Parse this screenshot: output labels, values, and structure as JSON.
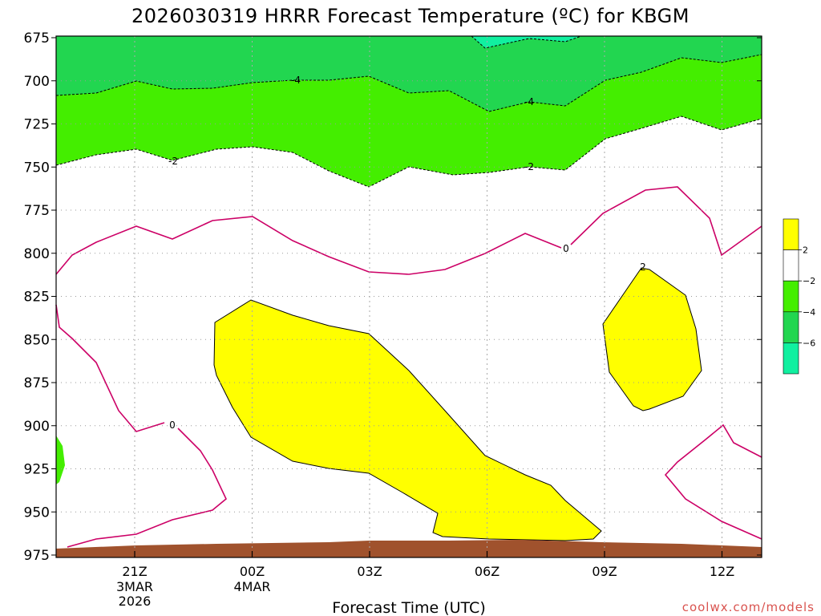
{
  "chart_data": {
    "type": "contour",
    "title": "2026030319 HRRR Forecast Temperature (ºC) for KBGM",
    "xlabel": "Forecast Time (UTC)",
    "ylabel": "",
    "y_axis": {
      "scale": "pressure (hPa), inverted",
      "ticks": [
        "675",
        "700",
        "725",
        "750",
        "775",
        "800",
        "825",
        "850",
        "875",
        "900",
        "925",
        "950",
        "975"
      ],
      "range": [
        975,
        675
      ]
    },
    "x_axis": {
      "range_hours_utc": [
        "2026-03-03 19Z",
        "2026-03-04 13Z"
      ],
      "ticks": [
        {
          "label": "21Z",
          "sub": [
            "3MAR",
            "2026"
          ]
        },
        {
          "label": "00Z",
          "sub": [
            "4MAR"
          ]
        },
        {
          "label": "03Z",
          "sub": []
        },
        {
          "label": "06Z",
          "sub": []
        },
        {
          "label": "09Z",
          "sub": []
        },
        {
          "label": "12Z",
          "sub": []
        }
      ]
    },
    "grid": true,
    "contour_labels": [
      "-4",
      "-4",
      "-2",
      "-2",
      "0",
      "0",
      "2"
    ],
    "colorbar": {
      "placement": "right",
      "labels": [
        "2",
        "−2",
        "−4",
        "−6"
      ],
      "colors": [
        "#ffff00",
        "#ffffff",
        "#44ee00",
        "#22d650",
        "#11f0a0"
      ]
    },
    "fill_colors": {
      "warm_above_0": "#ffff00",
      "minus2_to_minus4": "#44ee00",
      "below_minus4": "#22d650",
      "below_minus6": "#11f0a0",
      "ground": "#a0522d",
      "zero_isotherm": "#cc0066"
    }
  },
  "credit": "coolwx.com/models"
}
